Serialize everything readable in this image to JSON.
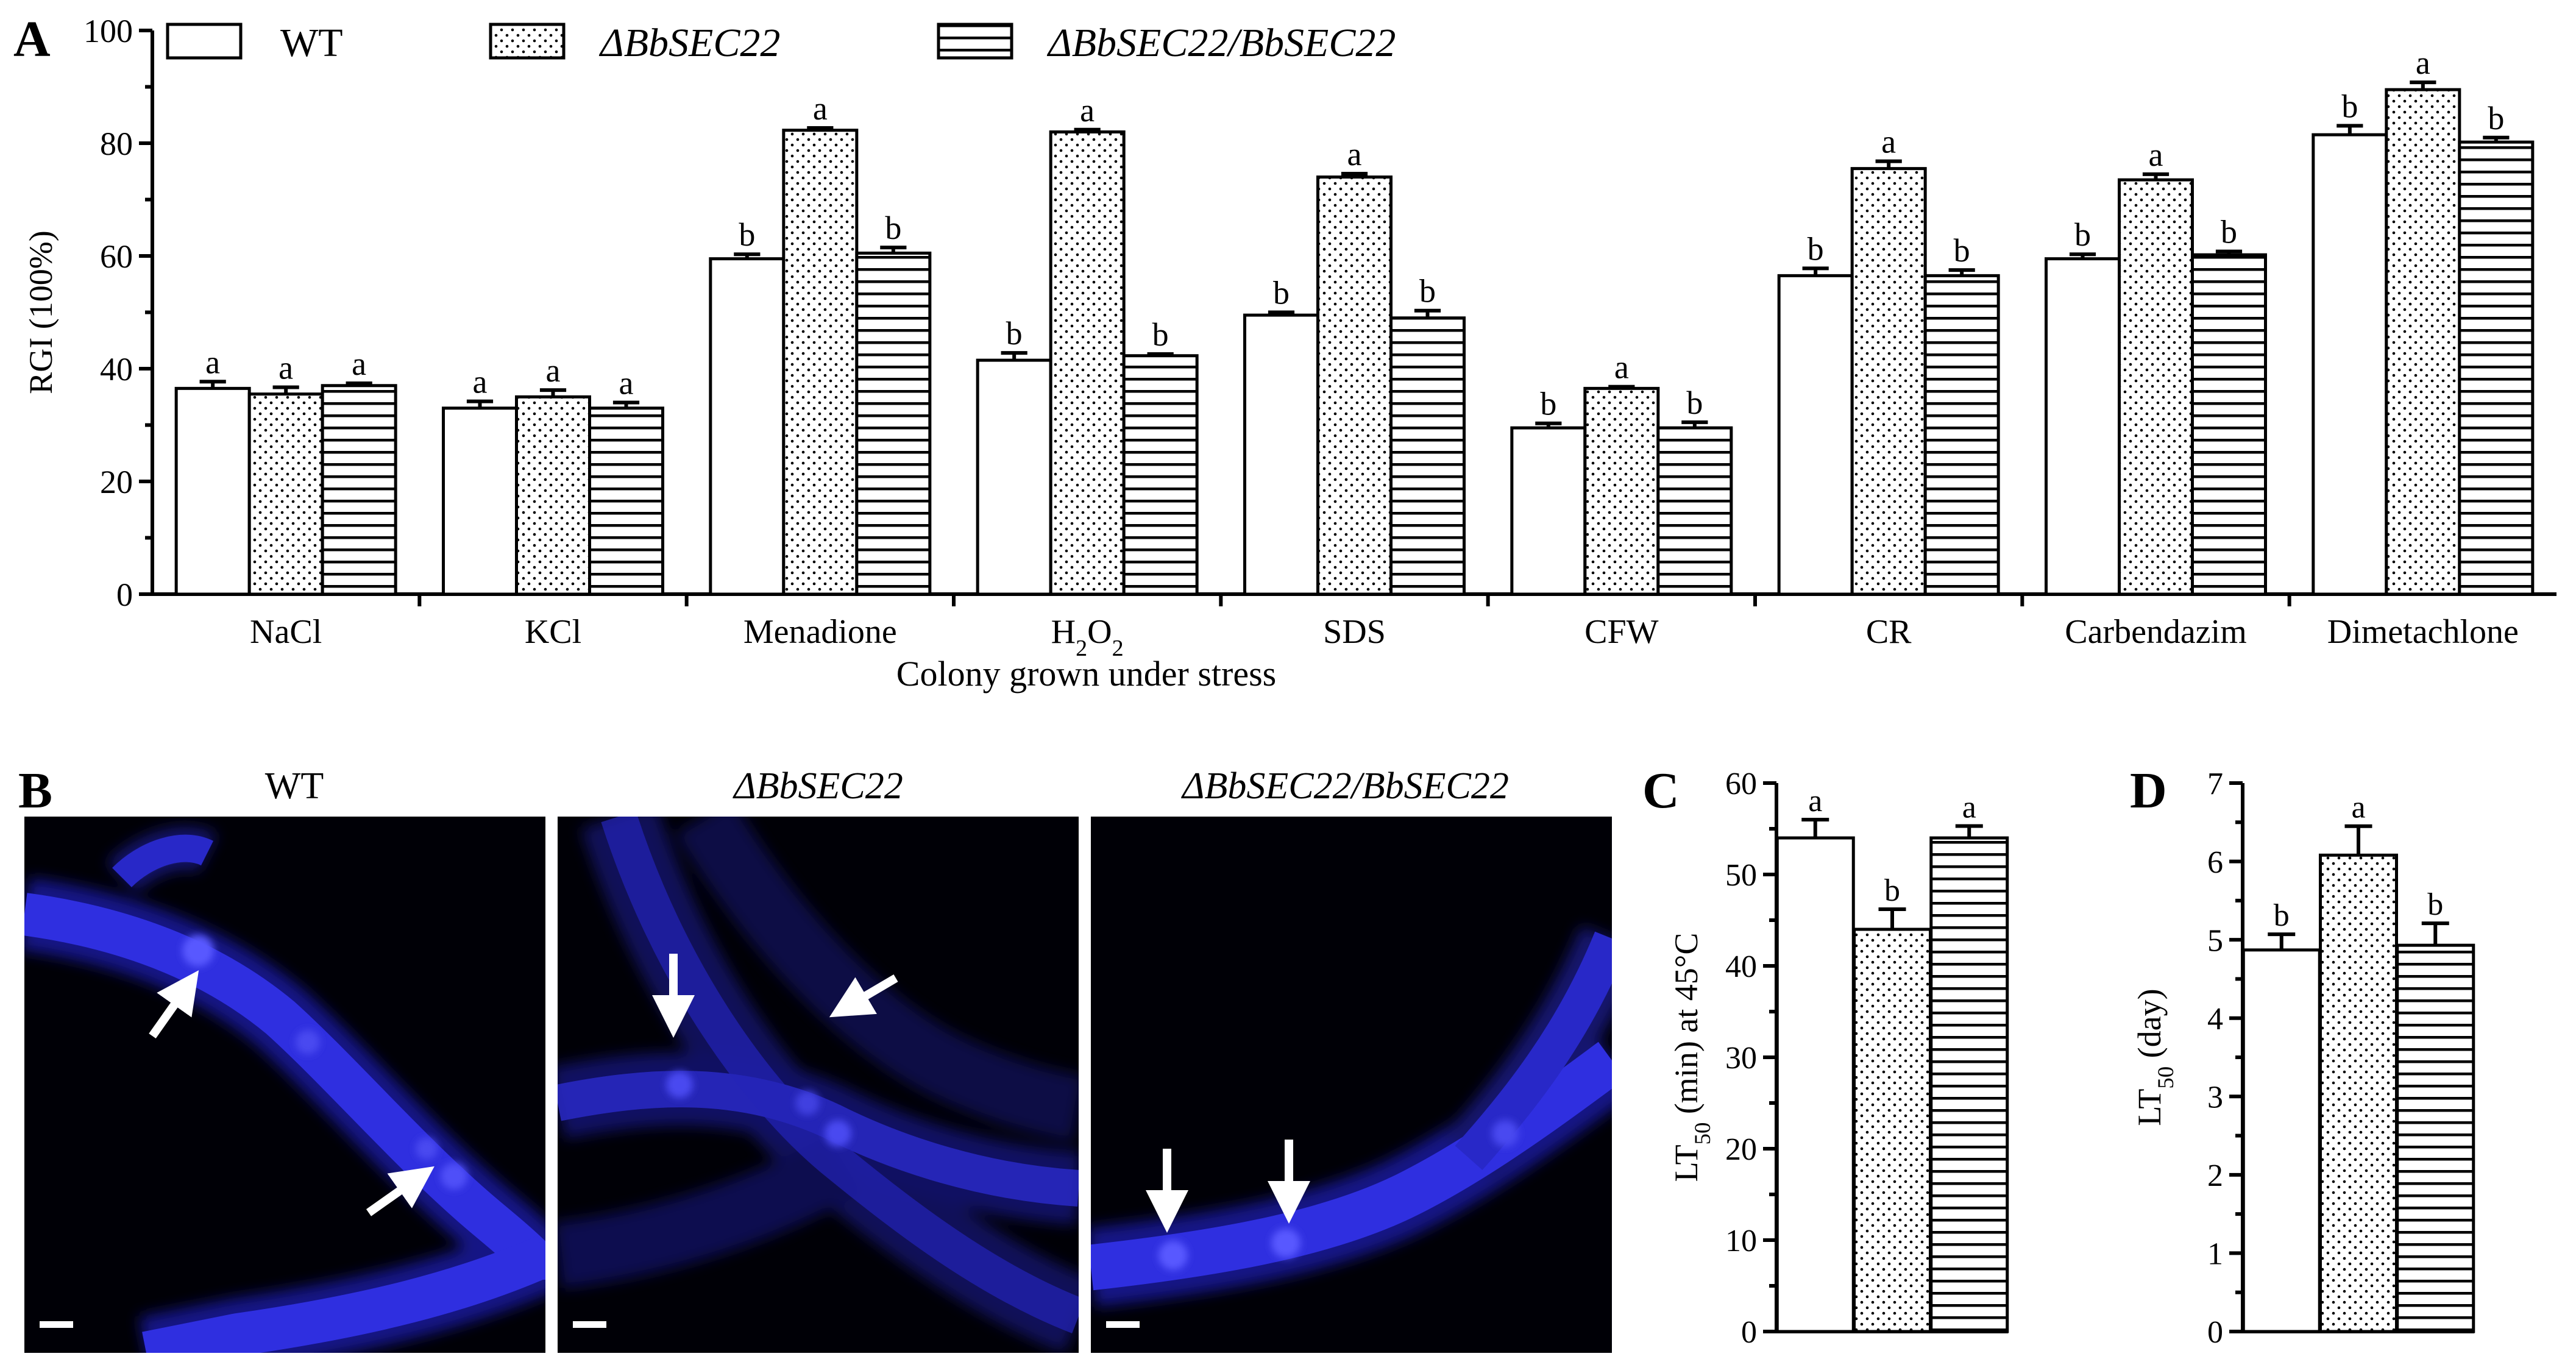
{
  "panel_letters": {
    "a": "A",
    "b": "B",
    "c": "C",
    "d": "D"
  },
  "legend_entries": [
    "WT",
    "ΔBbSEC22",
    "ΔBbSEC22/BbSEC22"
  ],
  "micrograph_titles": [
    "WT",
    "ΔBbSEC22",
    "ΔBbSEC22/BbSEC22"
  ],
  "colors": {
    "bar_edge": "#000000",
    "micrograph_bg": "#000006",
    "hypha": "#2f2fe0",
    "arrow": "#ffffff"
  },
  "chart_data": [
    {
      "panel": "A",
      "type": "bar",
      "ylabel": "RGI (100%)",
      "xlabel": "Colony grown under stress",
      "ylim": [
        0,
        100
      ],
      "yticks": [
        0,
        20,
        40,
        60,
        80,
        100
      ],
      "categories": [
        "NaCl",
        "KCl",
        "Menadione",
        "H2O2",
        "SDS",
        "CFW",
        "CR",
        "Carbendazim",
        "Dimetachlone"
      ],
      "series": [
        {
          "name": "WT",
          "pattern": "plain",
          "values": [
            36.5,
            33,
            59.5,
            41.5,
            49.5,
            29.5,
            56.5,
            59.5,
            81.5
          ],
          "errors": [
            1.2,
            1.2,
            0.8,
            1.3,
            0.5,
            0.8,
            1.3,
            0.8,
            1.6
          ],
          "labels": [
            "a",
            "a",
            "b",
            "b",
            "b",
            "b",
            "b",
            "b",
            "b"
          ]
        },
        {
          "name": "ΔBbSEC22",
          "pattern": "dots",
          "values": [
            35.5,
            35,
            82.3,
            82,
            74,
            36.5,
            75.5,
            73.5,
            89.5
          ],
          "errors": [
            1.2,
            1.2,
            0.4,
            0.4,
            0.6,
            0.3,
            1.3,
            1.0,
            1.3
          ],
          "labels": [
            "a",
            "a",
            "a",
            "a",
            "a",
            "a",
            "a",
            "a",
            "a"
          ]
        },
        {
          "name": "ΔBbSEC22/BbSEC22",
          "pattern": "hlines",
          "values": [
            37,
            33,
            60.5,
            42.3,
            49,
            29.5,
            56.5,
            60.2,
            80.2
          ],
          "errors": [
            0.4,
            1.0,
            1.0,
            0.3,
            1.3,
            1.0,
            1.0,
            0.6,
            0.8
          ],
          "labels": [
            "a",
            "a",
            "b",
            "b",
            "b",
            "b",
            "b",
            "b",
            "b"
          ]
        }
      ]
    },
    {
      "panel": "C",
      "type": "bar",
      "ylabel": "LT50 (min) at 45°C",
      "ylim": [
        0,
        60
      ],
      "yticks": [
        0,
        10,
        20,
        30,
        40,
        50,
        60
      ],
      "categories": [
        "WT",
        "ΔBbSEC22",
        "ΔBbSEC22/BbSEC22"
      ],
      "values": [
        54,
        44,
        54
      ],
      "errors": [
        2.0,
        2.2,
        1.3
      ],
      "labels": [
        "a",
        "b",
        "a"
      ],
      "patterns": [
        "plain",
        "dots",
        "hlines"
      ]
    },
    {
      "panel": "D",
      "type": "bar",
      "ylabel": "LT50 (day)",
      "ylim": [
        0,
        7
      ],
      "yticks": [
        0,
        1,
        2,
        3,
        4,
        5,
        6,
        7
      ],
      "categories": [
        "WT",
        "ΔBbSEC22",
        "ΔBbSEC22/BbSEC22"
      ],
      "values": [
        4.87,
        6.08,
        4.93
      ],
      "errors": [
        0.2,
        0.37,
        0.28
      ],
      "labels": [
        "b",
        "a",
        "b"
      ],
      "patterns": [
        "plain",
        "dots",
        "hlines"
      ]
    }
  ]
}
